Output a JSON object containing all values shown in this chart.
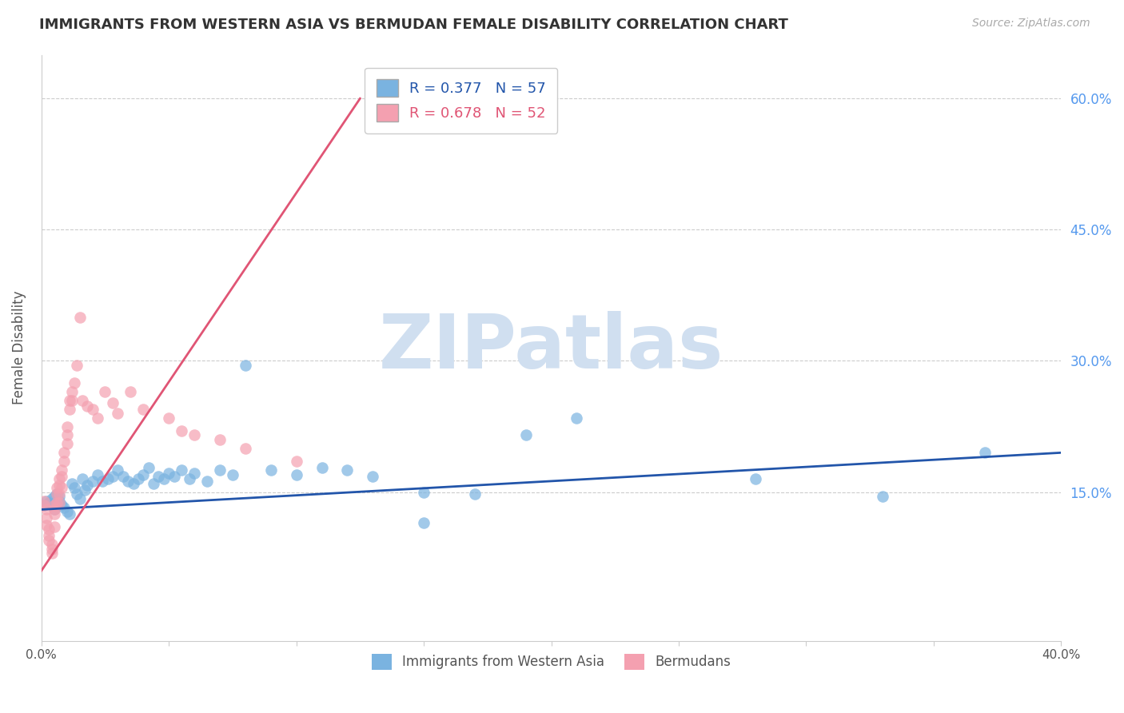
{
  "title": "IMMIGRANTS FROM WESTERN ASIA VS BERMUDAN FEMALE DISABILITY CORRELATION CHART",
  "source": "Source: ZipAtlas.com",
  "ylabel": "Female Disability",
  "xlim": [
    0.0,
    0.4
  ],
  "ylim": [
    -0.02,
    0.65
  ],
  "xticks": [
    0.0,
    0.05,
    0.1,
    0.15,
    0.2,
    0.25,
    0.3,
    0.35,
    0.4
  ],
  "ytick_positions": [
    0.15,
    0.3,
    0.45,
    0.6
  ],
  "ytick_labels": [
    "15.0%",
    "30.0%",
    "45.0%",
    "60.0%"
  ],
  "xtick_labels": [
    "0.0%",
    "",
    "",
    "",
    "",
    "",
    "",
    "",
    "40.0%"
  ],
  "grid_color": "#cccccc",
  "background_color": "#ffffff",
  "blue_color": "#7ab3e0",
  "pink_color": "#f4a0b0",
  "blue_line_color": "#2255aa",
  "pink_line_color": "#e05575",
  "legend_r1": "R = 0.377",
  "legend_n1": "N = 57",
  "legend_r2": "R = 0.678",
  "legend_n2": "N = 52",
  "watermark": "ZIPatlas",
  "watermark_color": "#d0dff0",
  "blue_scatter_x": [
    0.001,
    0.002,
    0.003,
    0.004,
    0.005,
    0.005,
    0.006,
    0.007,
    0.007,
    0.008,
    0.009,
    0.01,
    0.011,
    0.012,
    0.013,
    0.014,
    0.015,
    0.016,
    0.017,
    0.018,
    0.02,
    0.022,
    0.024,
    0.026,
    0.028,
    0.03,
    0.032,
    0.034,
    0.036,
    0.038,
    0.04,
    0.042,
    0.044,
    0.046,
    0.048,
    0.05,
    0.052,
    0.055,
    0.058,
    0.06,
    0.065,
    0.07,
    0.075,
    0.08,
    0.09,
    0.1,
    0.11,
    0.12,
    0.13,
    0.15,
    0.17,
    0.19,
    0.21,
    0.28,
    0.33,
    0.37,
    0.15
  ],
  "blue_scatter_y": [
    0.135,
    0.14,
    0.138,
    0.142,
    0.145,
    0.13,
    0.148,
    0.145,
    0.14,
    0.135,
    0.132,
    0.128,
    0.125,
    0.16,
    0.155,
    0.148,
    0.142,
    0.165,
    0.152,
    0.158,
    0.162,
    0.17,
    0.162,
    0.165,
    0.168,
    0.175,
    0.168,
    0.162,
    0.16,
    0.165,
    0.17,
    0.178,
    0.16,
    0.168,
    0.165,
    0.172,
    0.168,
    0.175,
    0.165,
    0.172,
    0.162,
    0.175,
    0.17,
    0.295,
    0.175,
    0.17,
    0.178,
    0.175,
    0.168,
    0.15,
    0.148,
    0.215,
    0.235,
    0.165,
    0.145,
    0.195,
    0.115
  ],
  "pink_scatter_x": [
    0.001,
    0.001,
    0.002,
    0.002,
    0.002,
    0.003,
    0.003,
    0.003,
    0.004,
    0.004,
    0.004,
    0.005,
    0.005,
    0.005,
    0.005,
    0.006,
    0.006,
    0.006,
    0.007,
    0.007,
    0.007,
    0.007,
    0.008,
    0.008,
    0.008,
    0.009,
    0.009,
    0.01,
    0.01,
    0.01,
    0.011,
    0.011,
    0.012,
    0.012,
    0.013,
    0.014,
    0.015,
    0.016,
    0.018,
    0.02,
    0.022,
    0.025,
    0.028,
    0.03,
    0.035,
    0.04,
    0.05,
    0.055,
    0.06,
    0.07,
    0.08,
    0.1
  ],
  "pink_scatter_y": [
    0.14,
    0.135,
    0.13,
    0.12,
    0.112,
    0.108,
    0.1,
    0.095,
    0.09,
    0.085,
    0.08,
    0.135,
    0.13,
    0.125,
    0.11,
    0.155,
    0.148,
    0.138,
    0.165,
    0.158,
    0.148,
    0.138,
    0.175,
    0.168,
    0.155,
    0.195,
    0.185,
    0.225,
    0.215,
    0.205,
    0.255,
    0.245,
    0.265,
    0.255,
    0.275,
    0.295,
    0.35,
    0.255,
    0.248,
    0.245,
    0.235,
    0.265,
    0.252,
    0.24,
    0.265,
    0.245,
    0.235,
    0.22,
    0.215,
    0.21,
    0.2,
    0.185
  ],
  "blue_line_x": [
    0.0,
    0.4
  ],
  "blue_line_y": [
    0.13,
    0.195
  ],
  "pink_line_x": [
    0.0,
    0.125
  ],
  "pink_line_y": [
    0.06,
    0.6
  ]
}
